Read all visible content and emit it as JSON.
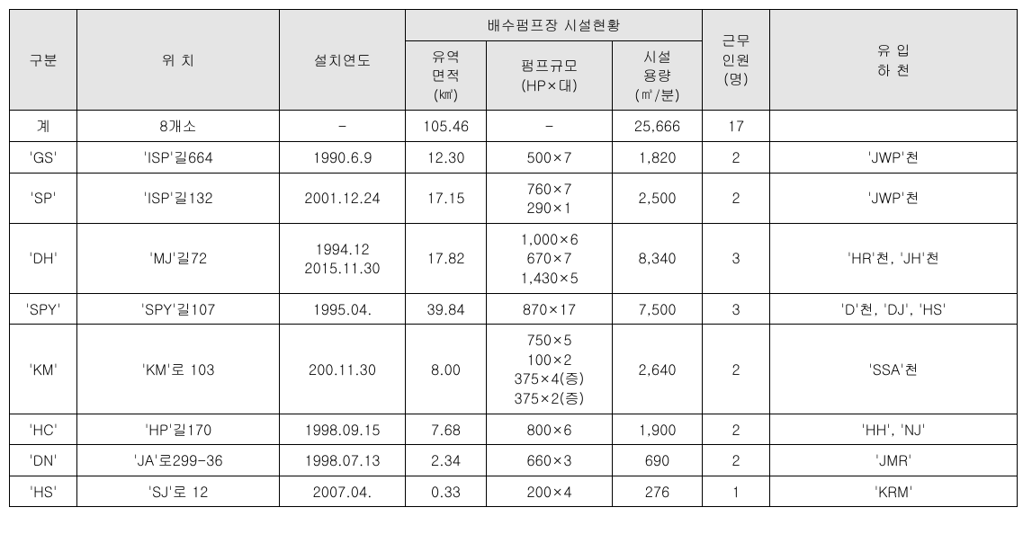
{
  "table": {
    "header": {
      "gubun": "구분",
      "wichi": "위 치",
      "seolchi": "설치연도",
      "baesu_group": "배수펌프장 시설현황",
      "yuyeok": "유역\n면적\n(㎢)",
      "pump": "펌프규모\n(HP×대)",
      "siseol": "시설\n용량\n(㎥/분)",
      "geunmu": "근무\n인원\n(명)",
      "yuip": "유 입\n하 천"
    },
    "rows": [
      {
        "gubun": "계",
        "wichi": "8개소",
        "seolchi": "-",
        "yuyeok": "105.46",
        "pump": "-",
        "siseol": "25,666",
        "geunmu": "17",
        "yuip": ""
      },
      {
        "gubun": "'GS'",
        "wichi": "'ISP'길664",
        "seolchi": "1990.6.9",
        "yuyeok": "12.30",
        "pump": "500×7",
        "siseol": "1,820",
        "geunmu": "2",
        "yuip": "'JWP'천"
      },
      {
        "gubun": "'SP'",
        "wichi": "'ISP'길132",
        "seolchi": "2001.12.24",
        "yuyeok": "17.15",
        "pump": "760×7\n290×1",
        "siseol": "2,500",
        "geunmu": "2",
        "yuip": "'JWP'천"
      },
      {
        "gubun": "'DH'",
        "wichi": "'MJ'길72",
        "seolchi": "1994.12\n2015.11.30",
        "yuyeok": "17.82",
        "pump": "1,000×6\n670×7\n1,430×5",
        "siseol": "8,340",
        "geunmu": "3",
        "yuip": "'HR'천, 'JH'천"
      },
      {
        "gubun": "'SPY'",
        "wichi": "'SPY'길107",
        "seolchi": "1995.04.",
        "yuyeok": "39.84",
        "pump": "870×17",
        "siseol": "7,500",
        "geunmu": "3",
        "yuip": "'D'천, 'DJ', 'HS'"
      },
      {
        "gubun": "'KM'",
        "wichi": "'KM'로 103",
        "seolchi": "200.11.30",
        "yuyeok": "8.00",
        "pump": "750×5\n100×2\n375×4(증)\n375×2(증)",
        "siseol": "2,640",
        "geunmu": "2",
        "yuip": "'SSA'천"
      },
      {
        "gubun": "'HC'",
        "wichi": "'HP'길170",
        "seolchi": "1998.09.15",
        "yuyeok": "7.68",
        "pump": "800×6",
        "siseol": "1,900",
        "geunmu": "2",
        "yuip": "'HH', 'NJ'"
      },
      {
        "gubun": "'DN'",
        "wichi": "'JA'로299-36",
        "seolchi": "1998.07.13",
        "yuyeok": "2.34",
        "pump": "660×3",
        "siseol": "690",
        "geunmu": "2",
        "yuip": "'JMR'"
      },
      {
        "gubun": "'HS'",
        "wichi": "'SJ'로 12",
        "seolchi": "2007.04.",
        "yuyeok": "0.33",
        "pump": "200×4",
        "siseol": "276",
        "geunmu": "1",
        "yuip": "'KRM'"
      }
    ]
  }
}
